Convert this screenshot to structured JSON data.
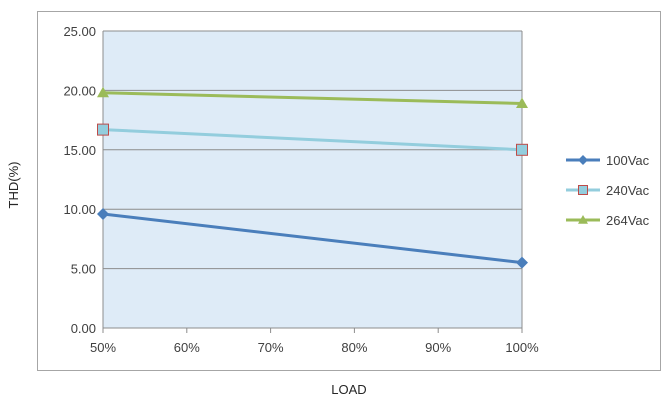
{
  "chart_data": {
    "type": "line",
    "title": "",
    "xlabel": "LOAD",
    "ylabel": "THD(%)",
    "x_ticks": [
      "50%",
      "60%",
      "70%",
      "80%",
      "90%",
      "100%"
    ],
    "xlim": [
      50,
      100
    ],
    "y_ticks": [
      "0.00",
      "5.00",
      "10.00",
      "15.00",
      "20.00",
      "25.00"
    ],
    "ylim": [
      0,
      25
    ],
    "grid": "horizontal",
    "legend_position": "right",
    "plot_background": "#deebf7",
    "series": [
      {
        "name": "100Vac",
        "color": "#4a7ebb",
        "marker": "diamond",
        "x": [
          50,
          100
        ],
        "values": [
          9.6,
          5.5
        ]
      },
      {
        "name": "240Vac",
        "color": "#93cddd",
        "marker_fill": "#93cddd",
        "marker_stroke": "#be4b48",
        "marker": "square",
        "x": [
          50,
          100
        ],
        "values": [
          16.7,
          15.0
        ]
      },
      {
        "name": "264Vac",
        "color": "#9bbb59",
        "marker": "triangle",
        "x": [
          50,
          100
        ],
        "values": [
          19.8,
          18.9
        ]
      }
    ]
  }
}
